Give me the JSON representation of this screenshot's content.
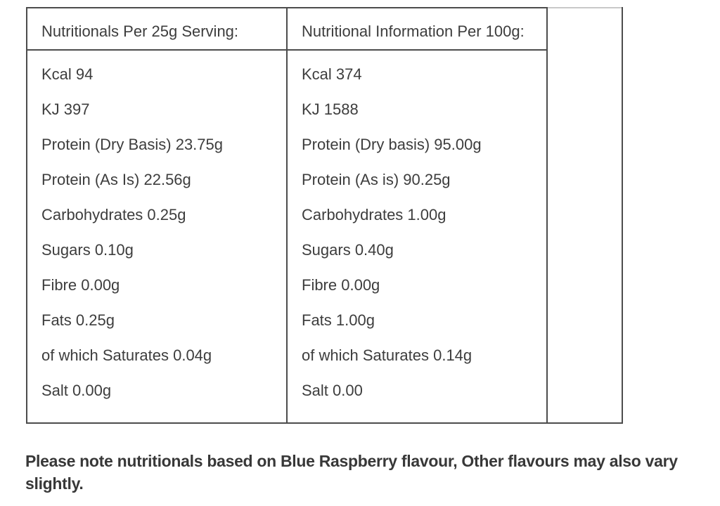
{
  "colors": {
    "border_dark": "#4c4c4c",
    "border_light": "#c9c9c9",
    "text": "#3d3d3d",
    "note_text": "#383838"
  },
  "table": {
    "columns": [
      {
        "header": "Nutritionals Per 25g Serving:",
        "rows": [
          "Kcal 94",
          "KJ 397",
          "Protein (Dry Basis) 23.75g",
          "Protein (As Is) 22.56g",
          "Carbohydrates 0.25g",
          "Sugars 0.10g",
          "Fibre 0.00g",
          "Fats 0.25g",
          "of which Saturates 0.04g",
          "Salt 0.00g"
        ]
      },
      {
        "header": "Nutritional Information Per 100g:",
        "rows": [
          "Kcal 374",
          "KJ 1588",
          "Protein (Dry basis) 95.00g",
          "Protein (As is) 90.25g",
          "Carbohydrates 1.00g",
          "Sugars 0.40g",
          "Fibre 0.00g",
          "Fats 1.00g",
          "of which Saturates 0.14g",
          "Salt 0.00"
        ]
      }
    ],
    "empty_column": ""
  },
  "note": {
    "text": "Please note nutritionals based on Blue Raspberry flavour, Other flavours may also vary slightly."
  }
}
